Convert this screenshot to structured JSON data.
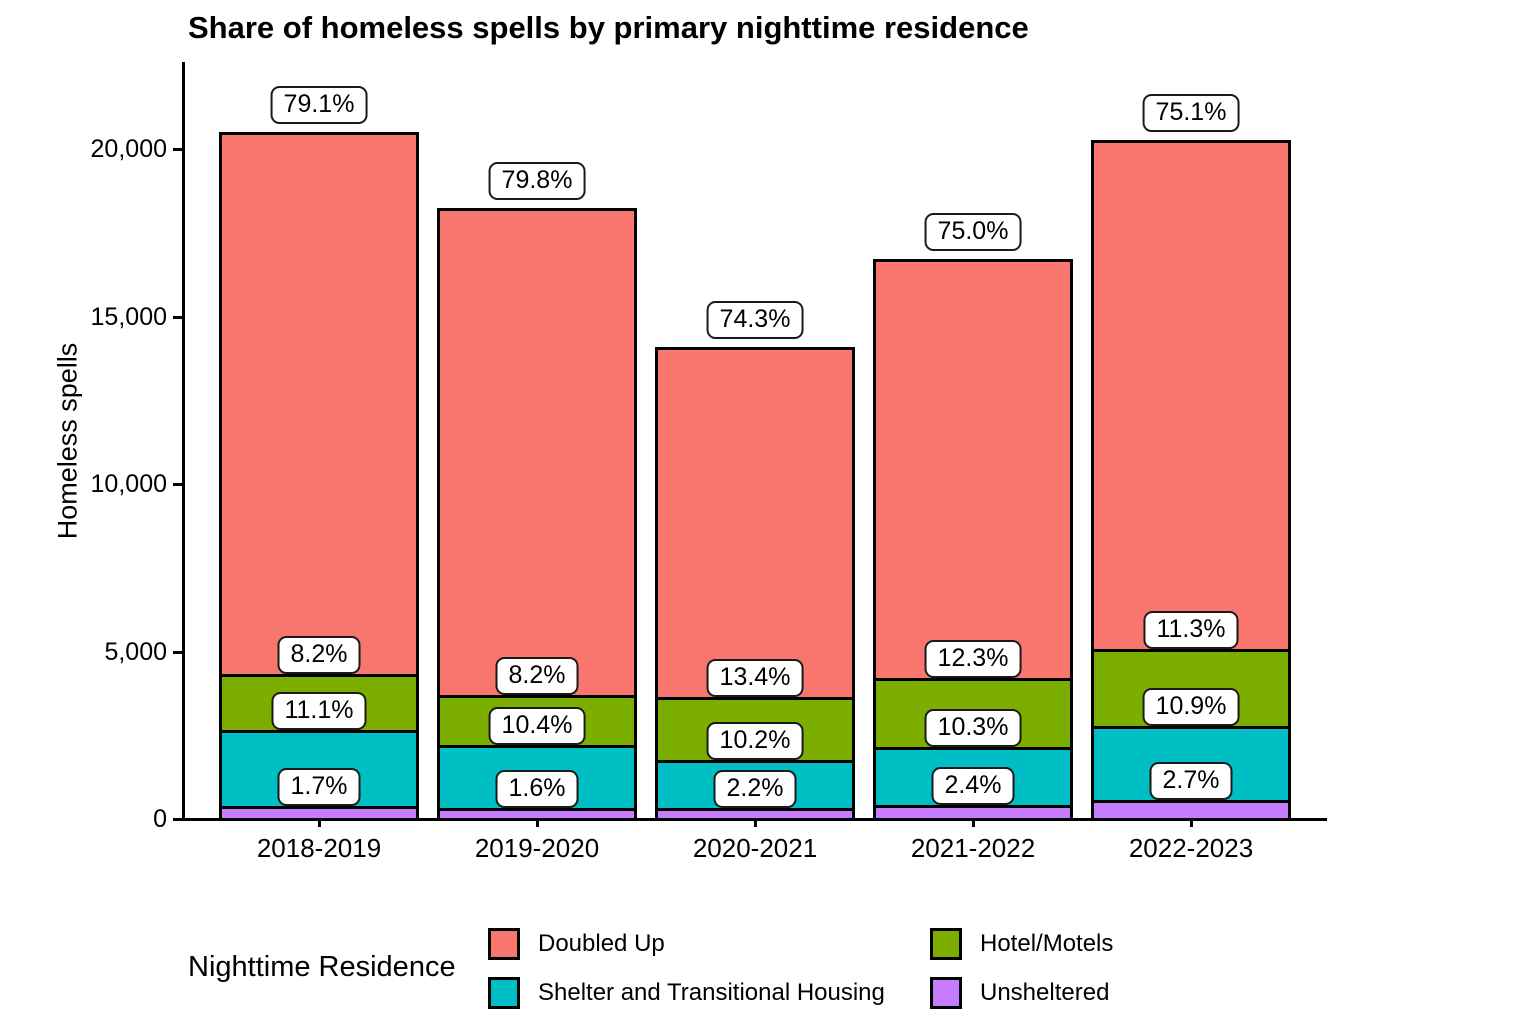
{
  "chart_data": {
    "type": "bar",
    "stacked": true,
    "title": "Share of homeless spells by primary nighttime residence",
    "ylabel": "Homeless spells",
    "xlabel": "",
    "categories": [
      "2018-2019",
      "2019-2020",
      "2020-2021",
      "2021-2022",
      "2022-2023"
    ],
    "totals": [
      20450,
      18200,
      14050,
      16700,
      20250
    ],
    "ylim": [
      0,
      22400
    ],
    "yticks": [
      0,
      5000,
      10000,
      15000,
      20000
    ],
    "ytick_labels": [
      "0",
      "5,000",
      "10,000",
      "15,000",
      "20,000"
    ],
    "grid": false,
    "stack_order_bottom_to_top": [
      "Unsheltered",
      "Shelter and Transitional Housing",
      "Hotel/Motels",
      "Doubled Up"
    ],
    "series": [
      {
        "name": "Doubled Up",
        "color": "#F8766D",
        "pct": [
          79.1,
          79.8,
          74.3,
          75.0,
          75.1
        ],
        "labels": [
          "79.1%",
          "79.8%",
          "74.3%",
          "75.0%",
          "75.1%"
        ],
        "values": [
          16176,
          14524,
          10439,
          12525,
          15208
        ]
      },
      {
        "name": "Shelter and Transitional Housing",
        "color": "#00BFC4",
        "pct": [
          11.1,
          10.4,
          10.2,
          10.3,
          10.9
        ],
        "labels": [
          "11.1%",
          "10.4%",
          "10.2%",
          "10.3%",
          "10.9%"
        ],
        "values": [
          2270,
          1893,
          1433,
          1720,
          2207
        ]
      },
      {
        "name": "Hotel/Motels",
        "color": "#7CAE00",
        "pct": [
          8.2,
          8.2,
          13.4,
          12.3,
          11.3
        ],
        "labels": [
          "8.2%",
          "8.2%",
          "13.4%",
          "12.3%",
          "11.3%"
        ],
        "values": [
          1677,
          1492,
          1883,
          2054,
          2288
        ]
      },
      {
        "name": "Unsheltered",
        "color": "#C77CFF",
        "pct": [
          1.7,
          1.6,
          2.2,
          2.4,
          2.7
        ],
        "labels": [
          "1.7%",
          "1.6%",
          "2.2%",
          "2.4%",
          "2.7%"
        ],
        "values": [
          348,
          291,
          309,
          401,
          547
        ]
      }
    ],
    "legend": {
      "title": "Nighttime Residence",
      "position": "bottom",
      "entries": [
        {
          "label": "Doubled Up",
          "color": "#F8766D"
        },
        {
          "label": "Shelter and Transitional Housing",
          "color": "#00BFC4"
        },
        {
          "label": "Hotel/Motels",
          "color": "#7CAE00"
        },
        {
          "label": "Unsheltered",
          "color": "#C77CFF"
        }
      ]
    }
  }
}
